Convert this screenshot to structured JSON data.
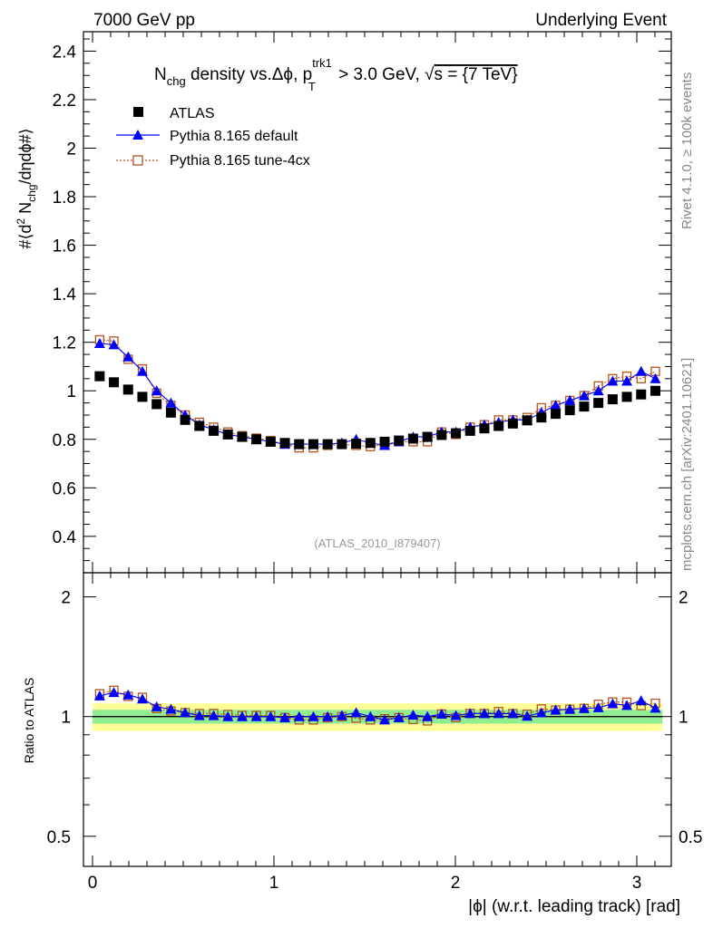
{
  "header": {
    "left": "7000 GeV pp",
    "right": "Underlying Event"
  },
  "side_labels": {
    "rivet": "Rivet 4.1.0, ≥ 100k events",
    "mcplots": "mcplots.cern.ch [arXiv:2401.10621]"
  },
  "analysis_id": "(ATLAS_2010_I879407)",
  "title": {
    "n": "N",
    "chg": "chg",
    "mid": " density vs.Δϕ, p",
    "sup": "trk1",
    "sub": "T",
    "rest": " > 3.0 GeV, ",
    "sqrt": "√",
    "s_part": "s = {7 TeV}"
  },
  "legend": [
    {
      "label": "ATLAS",
      "color": "#000000",
      "marker": "square-filled"
    },
    {
      "label": "Pythia 8.165 default",
      "color": "#0000ff",
      "marker": "triangle-filled"
    },
    {
      "label": "Pythia 8.165 tune-4cx",
      "color": "#b5541c",
      "marker": "square-open"
    }
  ],
  "ylabel_main": {
    "a": "#⟨d",
    "sup2": "2",
    "b": " N",
    "chg": "chg",
    "c": "/dηdϕ#⟩"
  },
  "ylabel_ratio": "Ratio to ATLAS",
  "xlabel": "|ϕ| (w.r.t. leading track) [rad]",
  "chart_data": {
    "type": "scatter",
    "x": [
      0.0393,
      0.1178,
      0.1963,
      0.2749,
      0.3534,
      0.432,
      0.5105,
      0.589,
      0.6676,
      0.7461,
      0.8247,
      0.9032,
      0.9817,
      1.0603,
      1.1388,
      1.2174,
      1.2959,
      1.3744,
      1.453,
      1.5315,
      1.6101,
      1.6886,
      1.7671,
      1.8457,
      1.9242,
      2.0028,
      2.0813,
      2.1598,
      2.2384,
      2.3169,
      2.3955,
      2.474,
      2.5525,
      2.6311,
      2.7096,
      2.7882,
      2.8667,
      2.9452,
      3.0238,
      3.1023
    ],
    "series": [
      {
        "name": "ATLAS",
        "values": [
          1.06,
          1.035,
          1.005,
          0.975,
          0.945,
          0.91,
          0.88,
          0.855,
          0.835,
          0.82,
          0.81,
          0.8,
          0.79,
          0.785,
          0.78,
          0.78,
          0.78,
          0.78,
          0.782,
          0.785,
          0.79,
          0.795,
          0.803,
          0.81,
          0.818,
          0.825,
          0.835,
          0.845,
          0.855,
          0.865,
          0.878,
          0.89,
          0.905,
          0.92,
          0.935,
          0.95,
          0.965,
          0.975,
          0.985,
          1.0
        ]
      },
      {
        "name": "Pythia 8.165 default",
        "values": [
          1.195,
          1.19,
          1.14,
          1.08,
          1.0,
          0.95,
          0.9,
          0.86,
          0.84,
          0.82,
          0.81,
          0.8,
          0.79,
          0.78,
          0.78,
          0.78,
          0.78,
          0.785,
          0.8,
          0.785,
          0.775,
          0.79,
          0.81,
          0.81,
          0.83,
          0.83,
          0.85,
          0.86,
          0.87,
          0.88,
          0.88,
          0.91,
          0.94,
          0.96,
          0.98,
          1.0,
          1.04,
          1.04,
          1.08,
          1.05
        ]
      },
      {
        "name": "Pythia 8.165 tune-4cx",
        "values": [
          1.21,
          1.205,
          1.13,
          1.09,
          0.99,
          0.94,
          0.9,
          0.87,
          0.85,
          0.83,
          0.815,
          0.805,
          0.795,
          0.78,
          0.765,
          0.765,
          0.775,
          0.78,
          0.775,
          0.77,
          0.78,
          0.79,
          0.79,
          0.79,
          0.83,
          0.82,
          0.85,
          0.86,
          0.88,
          0.88,
          0.89,
          0.93,
          0.94,
          0.96,
          0.98,
          1.02,
          1.05,
          1.06,
          1.05,
          1.08
        ]
      }
    ],
    "main_ylim": [
      0.25,
      2.48
    ],
    "main_yticks": [
      "0.4",
      "0.6",
      "0.8",
      "1",
      "1.2",
      "1.4",
      "1.6",
      "1.8",
      "2",
      "2.2",
      "2.4"
    ],
    "ratio_ylim": [
      0.42,
      2.3
    ],
    "ratio_yticks": [
      "0.5",
      "1",
      "2"
    ],
    "ratio_bands": {
      "inner": 0.04,
      "outer": 0.08,
      "inner_color": "#90ee90",
      "outer_color": "#ffff99"
    },
    "xlim": [
      -0.05,
      3.19
    ],
    "xticks": [
      "0",
      "1",
      "2",
      "3"
    ],
    "grid": false
  }
}
